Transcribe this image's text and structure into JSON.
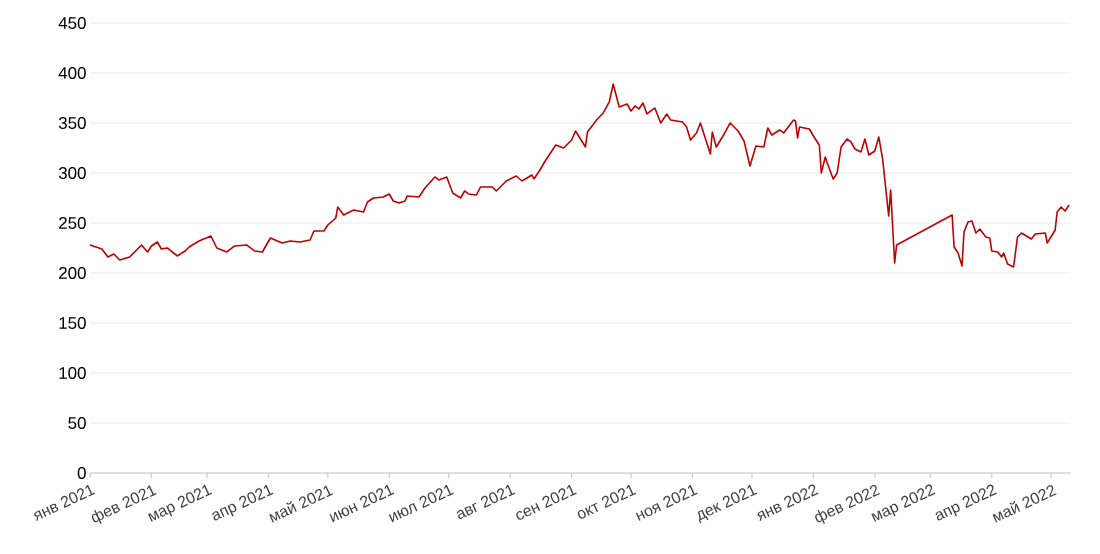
{
  "chart_data": {
    "type": "line",
    "x": [
      "2021-01-01",
      "2021-01-07",
      "2021-01-10",
      "2021-01-13",
      "2021-01-16",
      "2021-01-21",
      "2021-01-27",
      "2021-01-30",
      "2021-02-01",
      "2021-02-04",
      "2021-02-06",
      "2021-02-09",
      "2021-02-14",
      "2021-02-18",
      "2021-02-20",
      "2021-02-25",
      "2021-03-03",
      "2021-03-06",
      "2021-03-11",
      "2021-03-15",
      "2021-03-21",
      "2021-03-25",
      "2021-03-29",
      "2021-04-02",
      "2021-04-08",
      "2021-04-12",
      "2021-04-17",
      "2021-04-22",
      "2021-04-24",
      "2021-04-29",
      "2021-05-01",
      "2021-05-05",
      "2021-05-06",
      "2021-05-09",
      "2021-05-12",
      "2021-05-14",
      "2021-05-19",
      "2021-05-21",
      "2021-05-24",
      "2021-05-29",
      "2021-06-01",
      "2021-06-03",
      "2021-06-06",
      "2021-06-09",
      "2021-06-10",
      "2021-06-16",
      "2021-06-19",
      "2021-06-24",
      "2021-06-26",
      "2021-06-30",
      "2021-07-03",
      "2021-07-07",
      "2021-07-09",
      "2021-07-11",
      "2021-07-15",
      "2021-07-17",
      "2021-07-23",
      "2021-07-25",
      "2021-07-30",
      "2021-08-04",
      "2021-08-07",
      "2021-08-12",
      "2021-08-13",
      "2021-08-16",
      "2021-08-19",
      "2021-08-24",
      "2021-08-28",
      "2021-09-01",
      "2021-09-03",
      "2021-09-08",
      "2021-09-09",
      "2021-09-14",
      "2021-09-17",
      "2021-09-20",
      "2021-09-22",
      "2021-09-25",
      "2021-09-29",
      "2021-10-01",
      "2021-10-03",
      "2021-10-05",
      "2021-10-07",
      "2021-10-09",
      "2021-10-13",
      "2021-10-16",
      "2021-10-19",
      "2021-10-21",
      "2021-10-27",
      "2021-10-29",
      "2021-10-31",
      "2021-11-03",
      "2021-11-05",
      "2021-11-10",
      "2021-11-11",
      "2021-11-13",
      "2021-11-17",
      "2021-11-20",
      "2021-11-24",
      "2021-11-27",
      "2021-11-30",
      "2021-12-03",
      "2021-12-07",
      "2021-12-09",
      "2021-12-11",
      "2021-12-15",
      "2021-12-17",
      "2021-12-22",
      "2021-12-23",
      "2021-12-24",
      "2021-12-25",
      "2021-12-30",
      "2022-01-01",
      "2022-01-04",
      "2022-01-05",
      "2022-01-07",
      "2022-01-08",
      "2022-01-11",
      "2022-01-13",
      "2022-01-15",
      "2022-01-18",
      "2022-01-20",
      "2022-01-22",
      "2022-01-25",
      "2022-01-27",
      "2022-01-29",
      "2022-02-01",
      "2022-02-03",
      "2022-02-05",
      "2022-02-08",
      "2022-02-09",
      "2022-02-11",
      "2022-02-12",
      "2022-03-12",
      "2022-03-13",
      "2022-03-15",
      "2022-03-17",
      "2022-03-18",
      "2022-03-20",
      "2022-03-22",
      "2022-03-24",
      "2022-03-26",
      "2022-03-29",
      "2022-03-31",
      "2022-04-01",
      "2022-04-04",
      "2022-04-06",
      "2022-04-07",
      "2022-04-09",
      "2022-04-12",
      "2022-04-14",
      "2022-04-16",
      "2022-04-21",
      "2022-04-23",
      "2022-04-28",
      "2022-04-29",
      "2022-05-03",
      "2022-05-04",
      "2022-05-06",
      "2022-05-08",
      "2022-05-10"
    ],
    "series": [
      {
        "color": "#c00000",
        "values": [
          228,
          224,
          216,
          219,
          213,
          216,
          228,
          221,
          227,
          231,
          224,
          225,
          217,
          222,
          226,
          232,
          237,
          225,
          221,
          227,
          228,
          222,
          221,
          235,
          230,
          232,
          231,
          233,
          242,
          242,
          248,
          255,
          266,
          258,
          261,
          263,
          261,
          271,
          275,
          276,
          279,
          272,
          270,
          272,
          277,
          276,
          285,
          296,
          293,
          296,
          280,
          275,
          282,
          279,
          278,
          286,
          286,
          282,
          292,
          297,
          292,
          298,
          294,
          303,
          313,
          328,
          325,
          333,
          342,
          326,
          341,
          354,
          360,
          371,
          389,
          366,
          369,
          362,
          367,
          364,
          370,
          359,
          365,
          350,
          359,
          353,
          351,
          346,
          333,
          340,
          350,
          319,
          341,
          326,
          339,
          350,
          342,
          332,
          307,
          327,
          326,
          345,
          338,
          343,
          340,
          353,
          352,
          335,
          346,
          344,
          337,
          328,
          300,
          316,
          310,
          294,
          300,
          326,
          334,
          331,
          324,
          321,
          334,
          318,
          322,
          336,
          313,
          257,
          283,
          210,
          228,
          258,
          226,
          220,
          207,
          241,
          251,
          252,
          240,
          244,
          236,
          235,
          222,
          221,
          216,
          220,
          209,
          206,
          236,
          240,
          234,
          239,
          240,
          230,
          243,
          261,
          266,
          262,
          268
        ]
      }
    ],
    "xlim": [
      "2021-01-01",
      "2022-05-11"
    ],
    "xticks": [
      {
        "value": "2021-01-01",
        "label": "янв 2021"
      },
      {
        "value": "2021-02-01",
        "label": "фев 2021"
      },
      {
        "value": "2021-03-01",
        "label": "мар 2021"
      },
      {
        "value": "2021-04-01",
        "label": "апр 2021"
      },
      {
        "value": "2021-05-01",
        "label": "май 2021"
      },
      {
        "value": "2021-06-01",
        "label": "июн 2021"
      },
      {
        "value": "2021-07-01",
        "label": "июл 2021"
      },
      {
        "value": "2021-08-01",
        "label": "авг 2021"
      },
      {
        "value": "2021-09-01",
        "label": "сен 2021"
      },
      {
        "value": "2021-10-01",
        "label": "окт 2021"
      },
      {
        "value": "2021-11-01",
        "label": "ноя 2021"
      },
      {
        "value": "2021-12-01",
        "label": "дек 2021"
      },
      {
        "value": "2022-01-01",
        "label": "янв 2022"
      },
      {
        "value": "2022-02-01",
        "label": "фев 2022"
      },
      {
        "value": "2022-03-01",
        "label": "мар 2022"
      },
      {
        "value": "2022-04-01",
        "label": "апр 2022"
      },
      {
        "value": "2022-05-01",
        "label": "май 2022"
      }
    ],
    "ylim": [
      0,
      450
    ],
    "yticks": [
      0,
      50,
      100,
      150,
      200,
      250,
      300,
      350,
      400,
      450
    ],
    "grid": "y",
    "marker": "none",
    "line_style": "solid"
  }
}
